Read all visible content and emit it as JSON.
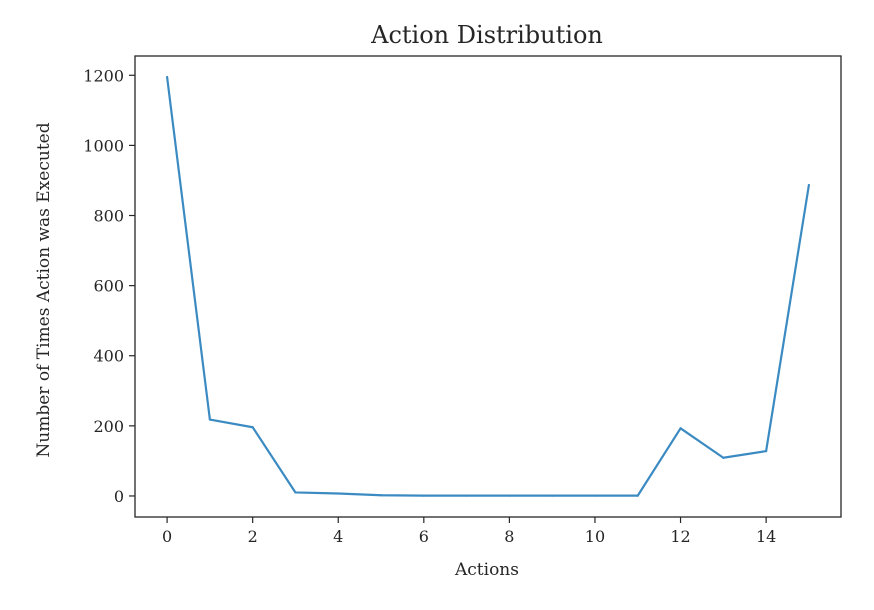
{
  "chart_data": {
    "type": "line",
    "title": "Action Distribution",
    "xlabel": "Actions",
    "ylabel": "Number of Times Action was Executed",
    "x": [
      0,
      1,
      2,
      3,
      4,
      5,
      6,
      7,
      8,
      9,
      10,
      11,
      12,
      13,
      14,
      15
    ],
    "series": [
      {
        "values": [
          1195,
          218,
          196,
          10,
          7,
          2,
          1,
          1,
          1,
          1,
          1,
          1,
          193,
          109,
          128,
          887
        ],
        "color": "#3b8bc2"
      }
    ],
    "xlim": [
      -0.75,
      15.75
    ],
    "ylim": [
      -60,
      1255
    ],
    "xticks": [
      0,
      2,
      4,
      6,
      8,
      10,
      12,
      14
    ],
    "yticks": [
      0,
      200,
      400,
      600,
      800,
      1000,
      1200
    ],
    "grid": false,
    "legend": "none"
  }
}
